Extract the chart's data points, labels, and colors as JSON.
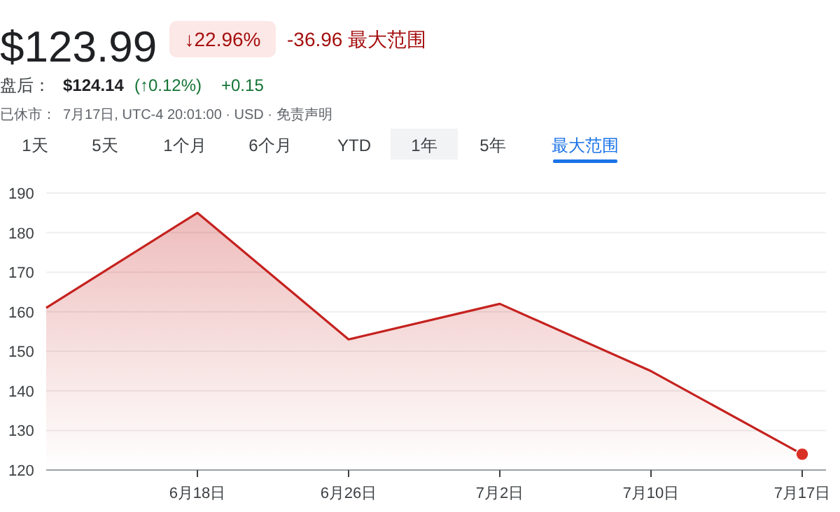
{
  "chart_data": {
    "type": "area",
    "title": "$123.99",
    "annotations": [
      "↓22.96%",
      "-36.96 最大范围",
      "盘后：",
      "$124.14",
      "(↑0.12%)",
      "+0.15",
      "已休市：",
      "7月17日, UTC-4 20:01:00 · USD · 免责声明",
      "1天",
      "5天",
      "1个月",
      "6个月",
      "YTD",
      "1年",
      "5年",
      "最大范围"
    ],
    "categories": [
      null,
      "6月18日",
      "6月26日",
      "7月2日",
      "7月10日",
      "7月17日"
    ],
    "series": [
      {
        "color": "#c5221f",
        "values": [
          161,
          185,
          153,
          162,
          145,
          124
        ]
      },
      {
        "type": "scatter",
        "color": "#d93025",
        "marker": "circle",
        "values": [
          null,
          null,
          null,
          null,
          null,
          124
        ]
      }
    ],
    "ylim": [
      120,
      190
    ],
    "yticks": [
      120,
      130,
      140,
      150,
      160,
      170,
      180,
      190
    ],
    "grid": "y",
    "marker": "none"
  }
}
